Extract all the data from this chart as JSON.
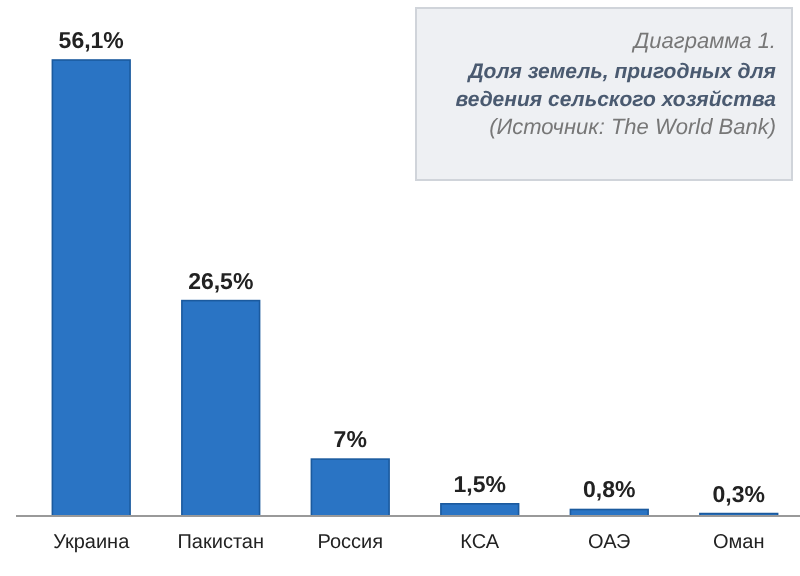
{
  "chart_data": {
    "type": "bar",
    "title": "Диаграмма 1.",
    "subtitle": "Доля земель, пригодных для ведения сельского хозяйства",
    "annotations": [
      "(Источник: The World Bank)"
    ],
    "categories": [
      "Украина",
      "Пакистан",
      "Россия",
      "КСА",
      "ОАЭ",
      "Оман"
    ],
    "values": [
      56.1,
      26.5,
      7,
      1.5,
      0.8,
      0.3
    ],
    "value_labels": [
      "56,1%",
      "26,5%",
      "7%",
      "1,5%",
      "0,8%",
      "0,3%"
    ],
    "color": "#2a74c4"
  }
}
